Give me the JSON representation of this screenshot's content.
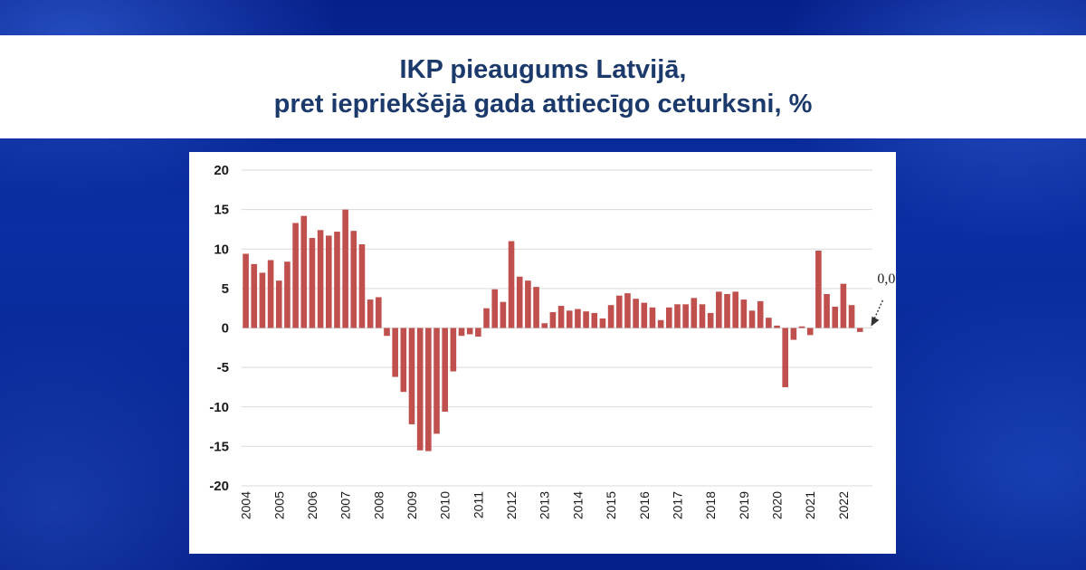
{
  "title": {
    "line1": "IKP pieaugums Latvijā,",
    "line2": "pret iepriekšējā gada attiecīgo ceturksni, %"
  },
  "colors": {
    "bar": "#c0504d",
    "title": "#1b3a6b",
    "grid": "#d9d9d9"
  },
  "chart_data": {
    "type": "bar",
    "ylim": [
      -20,
      20
    ],
    "yticks": [
      "20",
      "15",
      "10",
      "5",
      "0",
      "-5",
      "-10",
      "-15",
      "-20"
    ],
    "ytick_values": [
      20,
      15,
      10,
      5,
      0,
      -5,
      -10,
      -15,
      -20
    ],
    "grid": true,
    "x_year_labels": [
      "2004",
      "2005",
      "2006",
      "2007",
      "2008",
      "2009",
      "2010",
      "2011",
      "2012",
      "2013",
      "2014",
      "2015",
      "2016",
      "2017",
      "2018",
      "2019",
      "2020",
      "2021",
      "2022"
    ],
    "quarters_per_year": 4,
    "values": [
      9.4,
      8.1,
      7.0,
      8.6,
      6.0,
      8.4,
      13.3,
      14.2,
      11.4,
      12.4,
      11.7,
      12.2,
      15.0,
      12.3,
      10.6,
      3.6,
      3.9,
      -1.0,
      -6.2,
      -8.1,
      -12.2,
      -15.5,
      -15.6,
      -13.4,
      -10.6,
      -5.5,
      -1.0,
      -0.8,
      -1.1,
      2.5,
      4.9,
      3.3,
      11.0,
      6.5,
      6.0,
      5.2,
      0.6,
      2.0,
      2.8,
      2.2,
      2.4,
      2.1,
      1.9,
      1.2,
      2.9,
      4.1,
      4.4,
      3.7,
      3.2,
      2.6,
      1.0,
      2.6,
      3.0,
      3.0,
      3.8,
      3.0,
      1.9,
      4.6,
      4.3,
      4.6,
      3.6,
      2.2,
      3.4,
      1.3,
      0.3,
      -7.5,
      -1.5,
      0.2,
      -0.9,
      9.8,
      4.3,
      2.7,
      5.6,
      2.9,
      -0.5,
      0.0
    ],
    "annotation": "0,0"
  }
}
